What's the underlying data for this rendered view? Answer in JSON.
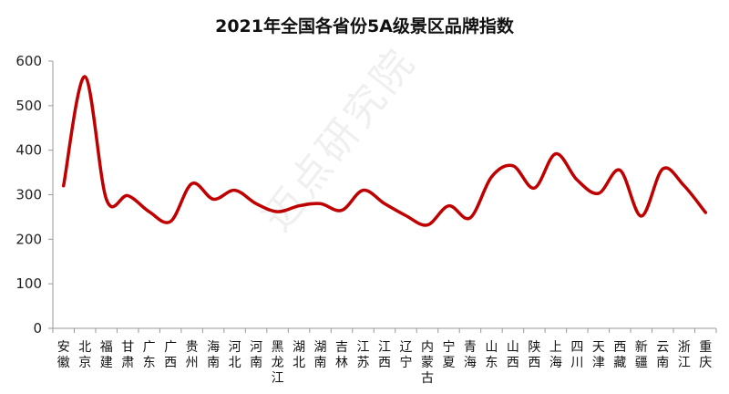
{
  "chart_data": {
    "type": "line",
    "title": "2021年全国各省份5A级景区品牌指数",
    "xlabel": "",
    "ylabel": "",
    "ylim": [
      0,
      600
    ],
    "yticks": [
      0,
      100,
      200,
      300,
      400,
      500,
      600
    ],
    "grid": false,
    "legend": "none",
    "line_color": "#C00000",
    "categories": [
      "安徽",
      "北京",
      "福建",
      "甘肃",
      "广东",
      "广西",
      "贵州",
      "海南",
      "河北",
      "河南",
      "黑龙江",
      "湖北",
      "湖南",
      "吉林",
      "江苏",
      "江西",
      "辽宁",
      "内蒙古",
      "宁夏",
      "青海",
      "山东",
      "山西",
      "陕西",
      "上海",
      "四川",
      "天津",
      "西藏",
      "新疆",
      "云南",
      "浙江",
      "重庆"
    ],
    "values": [
      320,
      565,
      290,
      298,
      262,
      240,
      325,
      290,
      310,
      280,
      262,
      275,
      280,
      265,
      310,
      280,
      253,
      232,
      275,
      248,
      340,
      365,
      315,
      392,
      333,
      303,
      355,
      252,
      358,
      320,
      260
    ]
  },
  "watermark": "迈点研究院"
}
